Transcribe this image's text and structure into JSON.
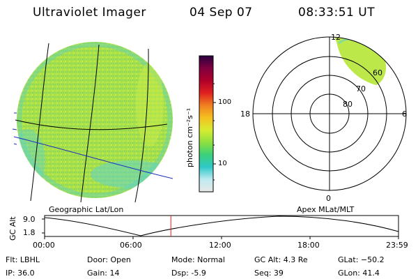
{
  "header": {
    "instrument": "Ultraviolet Imager",
    "date": "04 Sep 07",
    "time": "08:33:51 UT"
  },
  "colors": {
    "disk_fill": "#a8e04a",
    "disk_speckle": "#7fd66a",
    "edge_cyan": "#5fd3c8",
    "oval_fill": "#bde84a",
    "time_marker": "#e02020",
    "lat_line": "#2030c0"
  },
  "colorbar": {
    "unit_label": "photon cm⁻²s⁻¹",
    "tick_100": "100",
    "tick_10": "10",
    "stops": [
      "#e8e8e8",
      "#bfeaf0",
      "#2fc8c8",
      "#3ad07a",
      "#8ee040",
      "#d8ec30",
      "#f4c020",
      "#f08020",
      "#e02020",
      "#b0002a",
      "#800040",
      "#2a0040"
    ]
  },
  "left_panel": {
    "caption": "Geographic Lat/Lon"
  },
  "right_panel": {
    "caption": "Apex MLat/MLT",
    "mlt_labels": {
      "top": "12",
      "bottom": "0",
      "left": "18",
      "right": "6"
    },
    "mlat_labels": [
      "60",
      "70",
      "80"
    ]
  },
  "timeline": {
    "ylabel": "GC Alt",
    "ytick_top": "9.0",
    "ytick_bottom": "1.8",
    "xticks": [
      "00:00",
      "06:00",
      "12:00",
      "18:00",
      "23:59"
    ],
    "marker_time_hours": 8.564
  },
  "status": {
    "flt": "Flt: LBHL",
    "ip": "IP: 36.0",
    "door": "Door: Open",
    "gain": "Gain: 14",
    "mode": "Mode: Normal",
    "dsp": "Dsp:    -5.9",
    "gc_alt": "GC Alt: 4.3 Re",
    "seq": "Seq: 39",
    "glat": "GLat: −50.2",
    "glon": "GLon:  41.4"
  }
}
